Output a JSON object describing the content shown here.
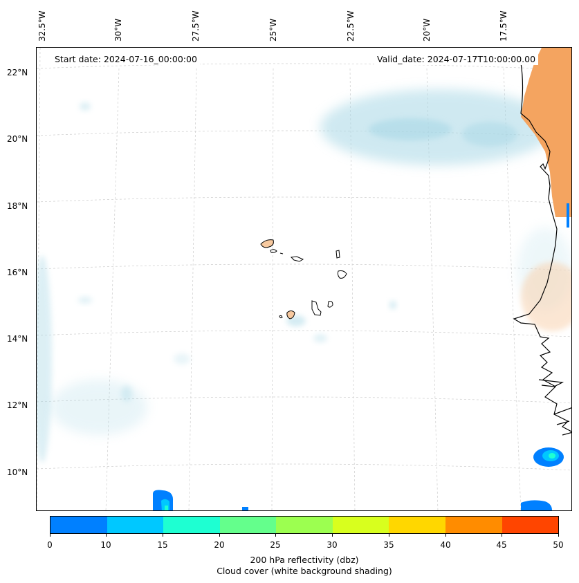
{
  "map": {
    "start_date": "Start date: 2024-07-16_00:00:00",
    "valid_date": "Valid_date: 2024-07-17T10:00:00.00",
    "lon_labels": [
      "32.5°W",
      "30°W",
      "27.5°W",
      "25°W",
      "22.5°W",
      "20°W",
      "17.5°W"
    ],
    "lat_labels": [
      "22°N",
      "20°N",
      "18°N",
      "16°N",
      "14°N",
      "12°N",
      "10°N"
    ],
    "colors": {
      "cloud": "#a9d8e6",
      "coast": "#000000",
      "land_shading": "#f4a460",
      "island_fill": "#f7c99f",
      "grid": "#cccccc"
    }
  },
  "colorbar": {
    "colors": [
      "#0080ff",
      "#00c8ff",
      "#1effd2",
      "#64ff8c",
      "#9cff50",
      "#d8ff1e",
      "#ffd700",
      "#ff8c00",
      "#ff4500"
    ],
    "ticks": [
      "0",
      "10",
      "15",
      "20",
      "25",
      "30",
      "35",
      "40",
      "45",
      "50"
    ],
    "title": "200 hPa reflectivity (dbz)",
    "subtitle": "Cloud cover (white background shading)"
  }
}
